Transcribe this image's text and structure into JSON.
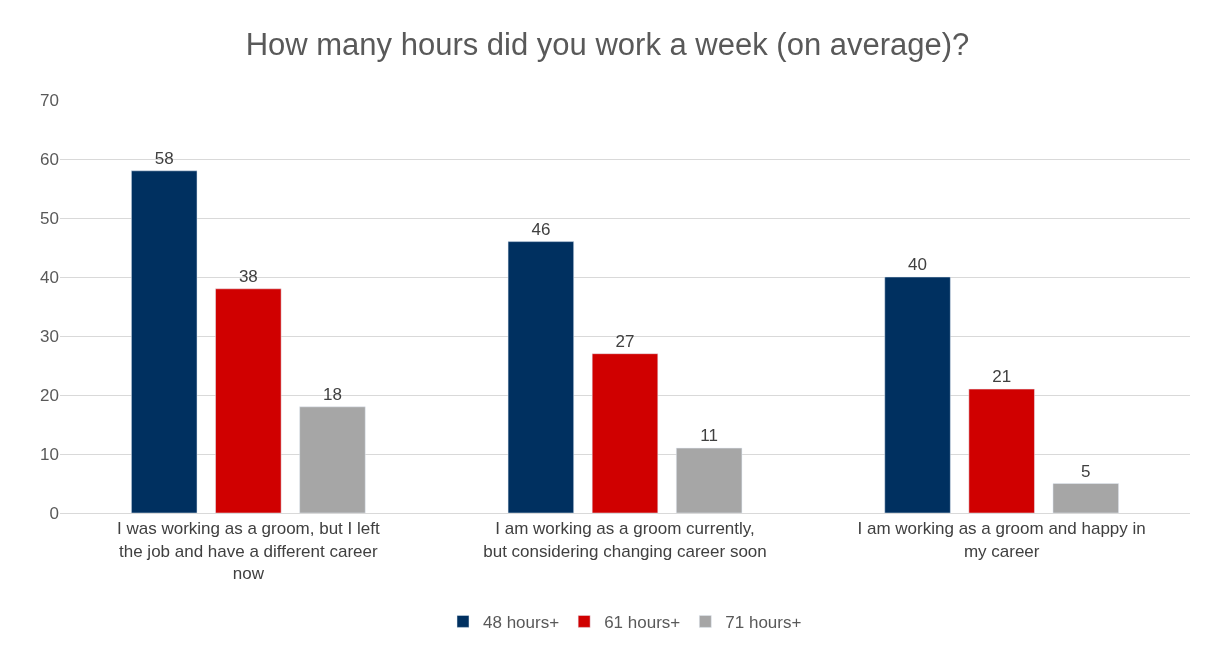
{
  "chart_data": {
    "type": "bar",
    "title": "How many hours did you work a week (on average)?",
    "categories": [
      "I was working as a groom, but I left the job and have a different career now",
      "I am working as a groom currently, but considering changing career soon",
      "I am working as a groom and happy in my career"
    ],
    "series": [
      {
        "name": "48 hours+",
        "color": "#003060",
        "values": [
          58,
          46,
          40
        ]
      },
      {
        "name": "61 hours+",
        "color": "#d00000",
        "values": [
          38,
          27,
          21
        ]
      },
      {
        "name": "71 hours+",
        "color": "#a6a6a6",
        "values": [
          18,
          11,
          5
        ]
      }
    ],
    "ylim": [
      0,
      70
    ],
    "yticks": [
      0,
      10,
      20,
      30,
      40,
      50,
      60,
      70
    ],
    "grid": "y",
    "legend": "bottom",
    "data_labels": true
  }
}
